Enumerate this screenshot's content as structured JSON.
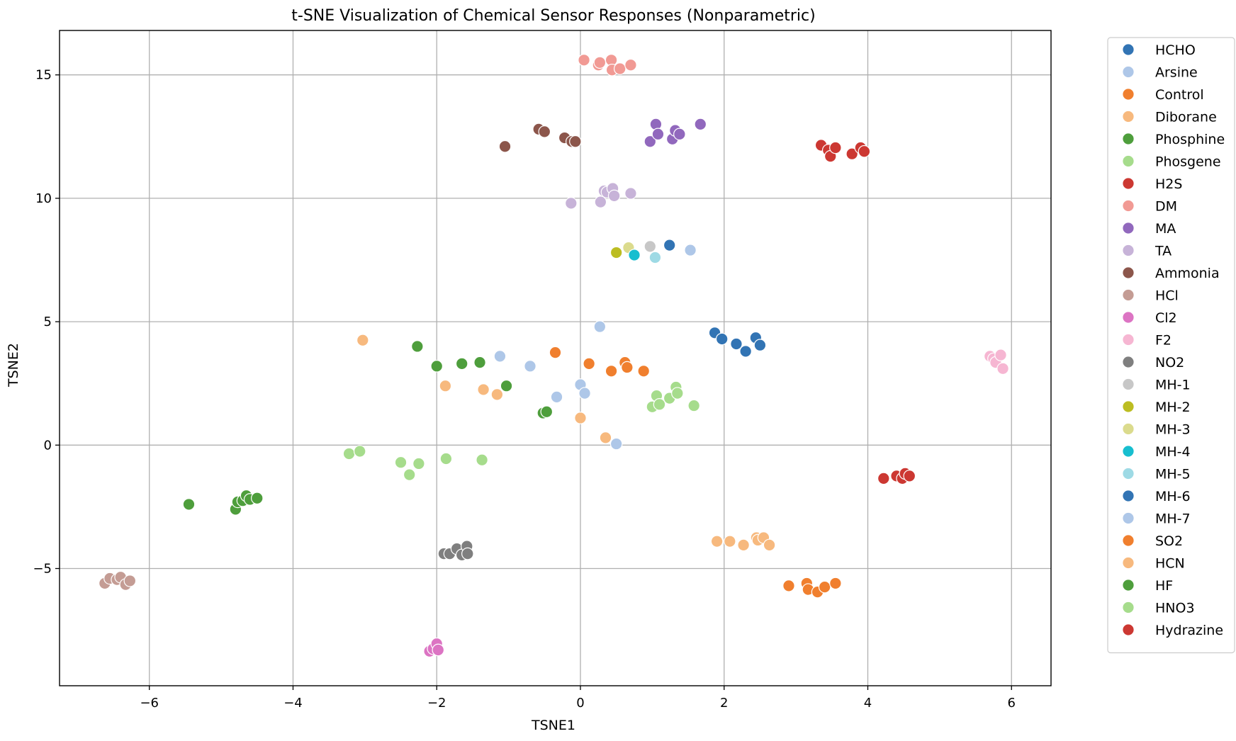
{
  "chart_data": {
    "type": "scatter",
    "title": "t-SNE Visualization of Chemical Sensor Responses (Nonparametric)",
    "xlabel": "TSNE1",
    "ylabel": "TSNE2",
    "xlim": [
      -7.25,
      6.55
    ],
    "ylim": [
      -9.75,
      16.8
    ],
    "xticks": [
      -6,
      -4,
      -2,
      0,
      2,
      4,
      6
    ],
    "xtick_labels": [
      "−6",
      "−4",
      "−2",
      "0",
      "2",
      "4",
      "6"
    ],
    "yticks": [
      -5,
      0,
      5,
      10,
      15
    ],
    "ytick_labels": [
      "−5",
      "0",
      "5",
      "10",
      "15"
    ],
    "grid": true,
    "legend_position": "outside-right",
    "series": [
      {
        "name": "HCHO",
        "color": "#3274b4",
        "points": [
          [
            1.87,
            4.55
          ],
          [
            1.97,
            4.3
          ],
          [
            2.17,
            4.1
          ],
          [
            2.3,
            3.8
          ],
          [
            2.44,
            4.35
          ],
          [
            2.5,
            4.05
          ]
        ]
      },
      {
        "name": "Arsine",
        "color": "#aec7e8",
        "points": [
          [
            -1.12,
            3.6
          ],
          [
            -0.7,
            3.2
          ],
          [
            -0.33,
            1.95
          ],
          [
            0,
            2.45
          ],
          [
            0.06,
            2.1
          ],
          [
            0.27,
            4.8
          ],
          [
            0.5,
            0.05
          ],
          [
            1.53,
            7.9
          ]
        ]
      },
      {
        "name": "Control",
        "color": "#f07f2e",
        "points": [
          [
            -0.35,
            3.75
          ],
          [
            0.12,
            3.3
          ],
          [
            0.43,
            3.0
          ],
          [
            0.62,
            3.35
          ],
          [
            0.65,
            3.15
          ],
          [
            0.88,
            3.0
          ]
        ]
      },
      {
        "name": "Diborane",
        "color": "#f7b97e",
        "points": [
          [
            -3.03,
            4.25
          ],
          [
            -1.88,
            2.4
          ],
          [
            -1.35,
            2.25
          ],
          [
            -1.16,
            2.05
          ],
          [
            0,
            1.1
          ],
          [
            0.35,
            0.3
          ]
        ]
      },
      {
        "name": "Phosphine",
        "color": "#4e9e3c",
        "points": [
          [
            -2.27,
            4.0
          ],
          [
            -2.0,
            3.2
          ],
          [
            -1.65,
            3.3
          ],
          [
            -1.4,
            3.35
          ],
          [
            -1.03,
            2.4
          ],
          [
            -0.52,
            1.3
          ],
          [
            -0.47,
            1.35
          ]
        ]
      },
      {
        "name": "Phosgene",
        "color": "#a6dc8c",
        "points": [
          [
            1.0,
            1.55
          ],
          [
            1.06,
            2.0
          ],
          [
            1.1,
            1.65
          ],
          [
            1.24,
            1.9
          ],
          [
            1.33,
            2.35
          ],
          [
            1.35,
            2.1
          ],
          [
            1.58,
            1.6
          ]
        ]
      },
      {
        "name": "H2S",
        "color": "#cc3832",
        "points": [
          [
            3.35,
            12.15
          ],
          [
            3.45,
            11.95
          ],
          [
            3.48,
            11.7
          ],
          [
            3.55,
            12.05
          ],
          [
            3.78,
            11.8
          ],
          [
            3.9,
            12.05
          ],
          [
            3.95,
            11.9
          ]
        ]
      },
      {
        "name": "DM",
        "color": "#f19a94",
        "points": [
          [
            0.05,
            15.6
          ],
          [
            0.25,
            15.4
          ],
          [
            0.27,
            15.5
          ],
          [
            0.43,
            15.6
          ],
          [
            0.44,
            15.2
          ],
          [
            0.55,
            15.25
          ],
          [
            0.7,
            15.4
          ]
        ]
      },
      {
        "name": "MA",
        "color": "#9168bd",
        "points": [
          [
            0.97,
            12.3
          ],
          [
            1.05,
            13.0
          ],
          [
            1.08,
            12.6
          ],
          [
            1.28,
            12.4
          ],
          [
            1.32,
            12.75
          ],
          [
            1.38,
            12.6
          ],
          [
            1.67,
            13.0
          ]
        ]
      },
      {
        "name": "TA",
        "color": "#c7b3d8",
        "points": [
          [
            -0.13,
            9.8
          ],
          [
            0.28,
            9.85
          ],
          [
            0.33,
            10.3
          ],
          [
            0.37,
            10.25
          ],
          [
            0.45,
            10.4
          ],
          [
            0.47,
            10.1
          ],
          [
            0.7,
            10.2
          ]
        ]
      },
      {
        "name": "Ammonia",
        "color": "#8c564b",
        "points": [
          [
            -1.05,
            12.1
          ],
          [
            -0.58,
            12.8
          ],
          [
            -0.5,
            12.7
          ],
          [
            -0.22,
            12.45
          ],
          [
            -0.12,
            12.3
          ],
          [
            -0.07,
            12.3
          ]
        ]
      },
      {
        "name": "HCl",
        "color": "#c49c94",
        "points": [
          [
            -6.62,
            -5.6
          ],
          [
            -6.55,
            -5.4
          ],
          [
            -6.45,
            -5.45
          ],
          [
            -6.4,
            -5.35
          ],
          [
            -6.33,
            -5.65
          ],
          [
            -6.27,
            -5.5
          ]
        ]
      },
      {
        "name": "Cl2",
        "color": "#dc74c3",
        "points": [
          [
            -2.1,
            -8.35
          ],
          [
            -2.05,
            -8.25
          ],
          [
            -2.0,
            -8.05
          ],
          [
            -1.98,
            -8.3
          ]
        ]
      },
      {
        "name": "F2",
        "color": "#f6b6d2",
        "points": [
          [
            5.7,
            3.6
          ],
          [
            5.75,
            3.5
          ],
          [
            5.78,
            3.35
          ],
          [
            5.85,
            3.65
          ],
          [
            5.88,
            3.1
          ]
        ]
      },
      {
        "name": "NO2",
        "color": "#7f7f7f",
        "points": [
          [
            -1.9,
            -4.4
          ],
          [
            -1.82,
            -4.4
          ],
          [
            -1.72,
            -4.2
          ],
          [
            -1.65,
            -4.45
          ],
          [
            -1.58,
            -4.1
          ],
          [
            -1.57,
            -4.4
          ]
        ]
      },
      {
        "name": "MH-1",
        "color": "#c7c7c7",
        "points": [
          [
            0.97,
            8.05
          ]
        ]
      },
      {
        "name": "MH-2",
        "color": "#bcbd22",
        "points": [
          [
            0.5,
            7.8
          ]
        ]
      },
      {
        "name": "MH-3",
        "color": "#dbdb8d",
        "points": [
          [
            0.67,
            8.0
          ]
        ]
      },
      {
        "name": "MH-4",
        "color": "#17becf",
        "points": [
          [
            0.75,
            7.7
          ]
        ]
      },
      {
        "name": "MH-5",
        "color": "#9edae5",
        "points": [
          [
            1.04,
            7.6
          ]
        ]
      },
      {
        "name": "MH-6",
        "color": "#3274b4",
        "points": [
          [
            1.24,
            8.1
          ]
        ]
      },
      {
        "name": "MH-7",
        "color": "#aec7e8",
        "points": []
      },
      {
        "name": "SO2",
        "color": "#f07f2e",
        "points": [
          [
            2.9,
            -5.7
          ],
          [
            3.15,
            -5.6
          ],
          [
            3.17,
            -5.85
          ],
          [
            3.3,
            -5.95
          ],
          [
            3.4,
            -5.75
          ],
          [
            3.55,
            -5.6
          ]
        ]
      },
      {
        "name": "HCN",
        "color": "#f7b97e",
        "points": [
          [
            1.9,
            -3.9
          ],
          [
            2.08,
            -3.9
          ],
          [
            2.27,
            -4.05
          ],
          [
            2.45,
            -3.75
          ],
          [
            2.47,
            -3.85
          ],
          [
            2.55,
            -3.75
          ],
          [
            2.63,
            -4.05
          ]
        ]
      },
      {
        "name": "HF",
        "color": "#4e9e3c",
        "points": [
          [
            -5.45,
            -2.4
          ],
          [
            -4.8,
            -2.6
          ],
          [
            -4.77,
            -2.3
          ],
          [
            -4.7,
            -2.25
          ],
          [
            -4.65,
            -2.05
          ],
          [
            -4.6,
            -2.2
          ],
          [
            -4.5,
            -2.15
          ]
        ]
      },
      {
        "name": "HNO3",
        "color": "#a6dc8c",
        "points": [
          [
            -3.22,
            -0.35
          ],
          [
            -3.07,
            -0.25
          ],
          [
            -2.5,
            -0.7
          ],
          [
            -2.38,
            -1.2
          ],
          [
            -2.25,
            -0.75
          ],
          [
            -1.87,
            -0.55
          ],
          [
            -1.37,
            -0.6
          ]
        ]
      },
      {
        "name": "Hydrazine",
        "color": "#cc3832",
        "points": [
          [
            4.22,
            -1.35
          ],
          [
            4.4,
            -1.25
          ],
          [
            4.48,
            -1.35
          ],
          [
            4.52,
            -1.15
          ],
          [
            4.58,
            -1.25
          ]
        ]
      }
    ]
  }
}
